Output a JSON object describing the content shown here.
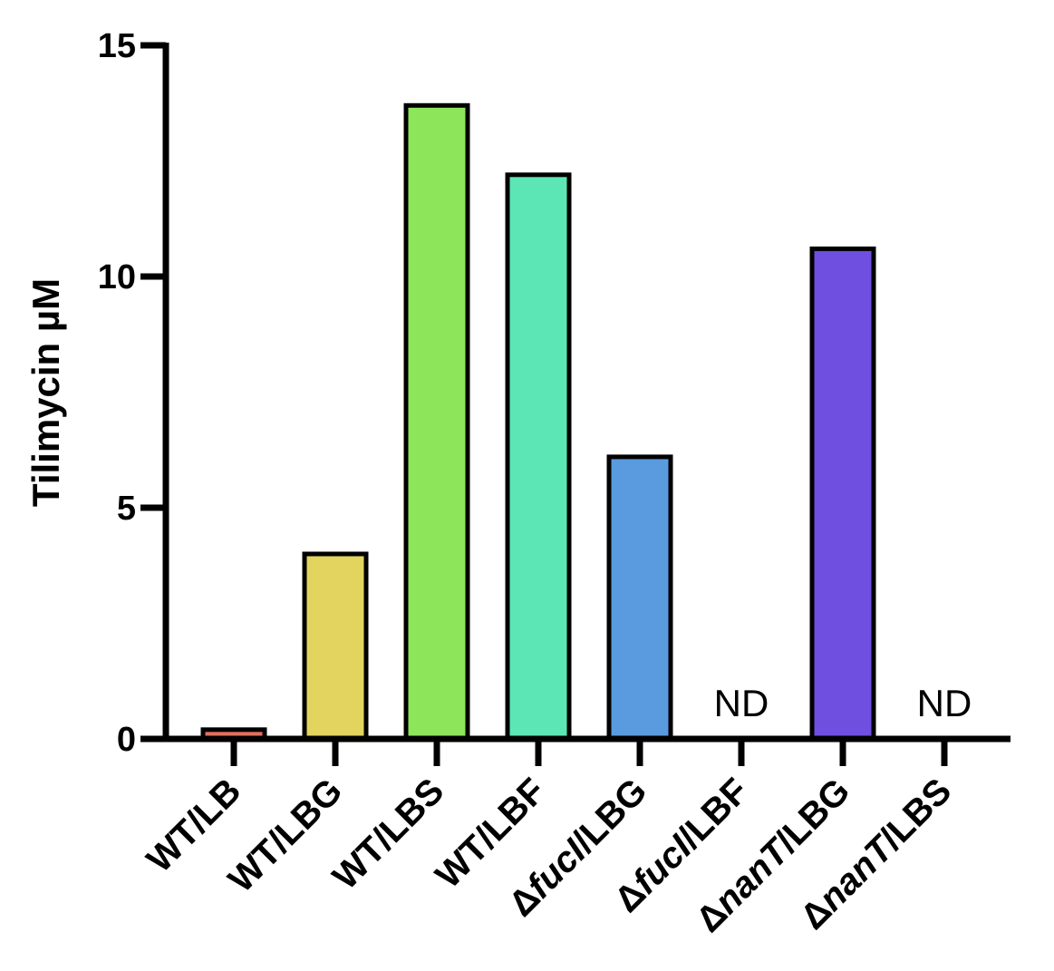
{
  "chart_data": {
    "type": "bar",
    "title": "",
    "xlabel": "",
    "ylabel": "Tilimycin µM",
    "ylim": [
      0,
      15
    ],
    "yticks": [
      0,
      5,
      10,
      15
    ],
    "grid": false,
    "categories": [
      {
        "prefix": "",
        "italic": "",
        "suffix": "WT/LB"
      },
      {
        "prefix": "",
        "italic": "",
        "suffix": "WT/LBG"
      },
      {
        "prefix": "",
        "italic": "",
        "suffix": "WT/LBS"
      },
      {
        "prefix": "",
        "italic": "",
        "suffix": "WT/LBF"
      },
      {
        "prefix": "Δ",
        "italic": "fucI",
        "suffix": "/LBG"
      },
      {
        "prefix": "Δ",
        "italic": "fucI",
        "suffix": "/LBF"
      },
      {
        "prefix": "Δ",
        "italic": "nanT",
        "suffix": "/LBG"
      },
      {
        "prefix": "Δ",
        "italic": "nanT",
        "suffix": "/LBS"
      }
    ],
    "values": [
      0.2,
      4.0,
      13.7,
      12.2,
      6.1,
      null,
      10.6,
      null
    ],
    "annotations": [
      null,
      null,
      null,
      null,
      null,
      "ND",
      null,
      "ND"
    ],
    "colors": [
      "#e0715f",
      "#e2d45e",
      "#8de65a",
      "#5ce6b6",
      "#5a9be0",
      "#ffffff",
      "#6e4fe0",
      "#ffffff"
    ]
  }
}
